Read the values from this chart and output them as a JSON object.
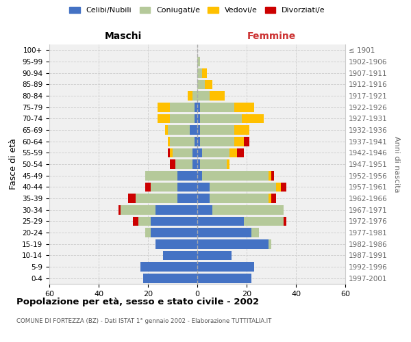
{
  "age_groups": [
    "100+",
    "95-99",
    "90-94",
    "85-89",
    "80-84",
    "75-79",
    "70-74",
    "65-69",
    "60-64",
    "55-59",
    "50-54",
    "45-49",
    "40-44",
    "35-39",
    "30-34",
    "25-29",
    "20-24",
    "15-19",
    "10-14",
    "5-9",
    "0-4"
  ],
  "birth_years": [
    "≤ 1901",
    "1902-1906",
    "1907-1911",
    "1912-1916",
    "1917-1921",
    "1922-1926",
    "1927-1931",
    "1932-1936",
    "1937-1941",
    "1942-1946",
    "1947-1951",
    "1952-1956",
    "1957-1961",
    "1962-1966",
    "1967-1971",
    "1972-1976",
    "1977-1981",
    "1982-1986",
    "1987-1991",
    "1992-1996",
    "1997-2001"
  ],
  "males": {
    "celibe": [
      0,
      0,
      0,
      0,
      0,
      1,
      1,
      3,
      1,
      2,
      2,
      8,
      8,
      8,
      17,
      19,
      19,
      17,
      14,
      23,
      22
    ],
    "coniugato": [
      0,
      0,
      0,
      0,
      2,
      10,
      10,
      9,
      10,
      8,
      7,
      13,
      11,
      17,
      14,
      5,
      2,
      0,
      0,
      0,
      0
    ],
    "vedovo": [
      0,
      0,
      0,
      0,
      2,
      5,
      5,
      1,
      1,
      1,
      0,
      0,
      0,
      0,
      0,
      0,
      0,
      0,
      0,
      0,
      0
    ],
    "divorziato": [
      0,
      0,
      0,
      0,
      0,
      0,
      0,
      0,
      0,
      1,
      2,
      0,
      2,
      3,
      1,
      2,
      0,
      0,
      0,
      0,
      0
    ]
  },
  "females": {
    "nubile": [
      0,
      0,
      0,
      0,
      0,
      1,
      1,
      1,
      1,
      2,
      1,
      2,
      5,
      5,
      6,
      19,
      22,
      29,
      14,
      23,
      22
    ],
    "coniugata": [
      0,
      1,
      2,
      3,
      5,
      14,
      17,
      14,
      14,
      11,
      11,
      27,
      27,
      24,
      29,
      16,
      3,
      1,
      0,
      0,
      0
    ],
    "vedova": [
      0,
      0,
      2,
      3,
      6,
      8,
      9,
      6,
      4,
      3,
      1,
      1,
      2,
      1,
      0,
      0,
      0,
      0,
      0,
      0,
      0
    ],
    "divorziata": [
      0,
      0,
      0,
      0,
      0,
      0,
      0,
      0,
      2,
      3,
      0,
      1,
      2,
      2,
      0,
      1,
      0,
      0,
      0,
      0,
      0
    ]
  },
  "colors": {
    "celibe": "#4472c4",
    "coniugato": "#b5c99a",
    "vedovo": "#ffc000",
    "divorziato": "#cc0000"
  },
  "xlim": 60,
  "title": "Popolazione per età, sesso e stato civile - 2002",
  "subtitle": "COMUNE DI FORTEZZA (BZ) - Dati ISTAT 1° gennaio 2002 - Elaborazione TUTTITALIA.IT",
  "ylabel_left": "Fasce di età",
  "ylabel_right": "Anni di nascita",
  "xlabel_left": "Maschi",
  "xlabel_right": "Femmine",
  "legend_labels": [
    "Celibi/Nubili",
    "Coniugati/e",
    "Vedovi/e",
    "Divorziati/e"
  ],
  "bg_color": "#f0f0f0"
}
